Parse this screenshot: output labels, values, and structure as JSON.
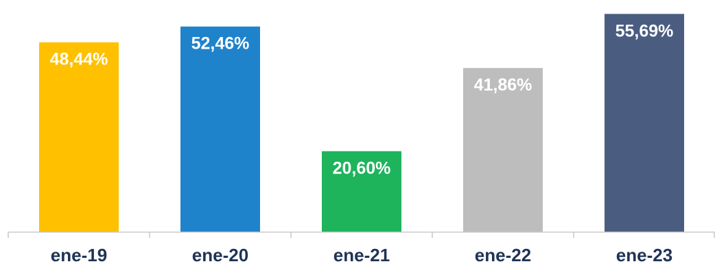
{
  "chart_data": {
    "type": "bar",
    "title": "",
    "xlabel": "",
    "ylabel": "",
    "categories": [
      "ene-19",
      "ene-20",
      "ene-21",
      "ene-22",
      "ene-23"
    ],
    "values": [
      48.44,
      52.46,
      20.6,
      41.86,
      55.69
    ],
    "value_labels": [
      "48,44%",
      "52,46%",
      "20,60%",
      "41,86%",
      "55,69%"
    ],
    "colors": [
      "#FFC000",
      "#1F83CC",
      "#1DB45C",
      "#BDBDBD",
      "#4A5D80"
    ],
    "label_colors": [
      "#F2F2F2",
      "#FFFFFF",
      "#FFFFFF",
      "#F2F2F2",
      "#FFFFFF"
    ],
    "ylim": [
      0,
      57.5
    ],
    "grid": false,
    "legend": "none"
  }
}
